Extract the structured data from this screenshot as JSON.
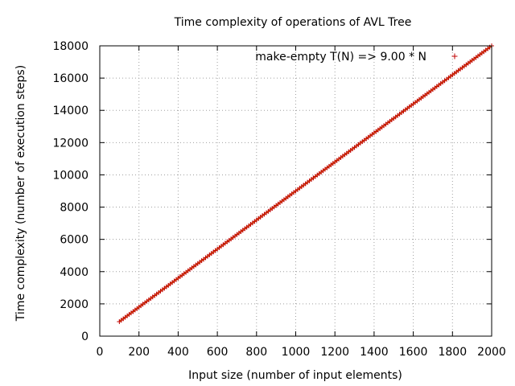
{
  "chart_data": {
    "type": "scatter",
    "title": "Time complexity of operations of AVL Tree",
    "xlabel": "Input size (number of input elements)",
    "ylabel": "Time complexity (number of execution steps)",
    "xlim": [
      0,
      2000
    ],
    "ylim": [
      0,
      18000
    ],
    "xticks": [
      0,
      200,
      400,
      600,
      800,
      1000,
      1200,
      1400,
      1600,
      1800,
      2000
    ],
    "yticks": [
      0,
      2000,
      4000,
      6000,
      8000,
      10000,
      12000,
      14000,
      16000,
      18000
    ],
    "xtick_labels": [
      "0",
      "200",
      "400",
      "600",
      "800",
      "1000",
      "1200",
      "1400",
      "1600",
      "1800",
      "2000"
    ],
    "ytick_labels": [
      "0",
      "2000",
      "4000",
      "6000",
      "8000",
      "10000",
      "12000",
      "14000",
      "16000",
      "18000"
    ],
    "grid": true,
    "legend_position": "top-right",
    "series": [
      {
        "name": "make-empty T(N) => 9.00 * N",
        "marker": "+",
        "color": "#c00000",
        "fit_color": "#e0a000",
        "x_start": 100,
        "x_end": 2000,
        "x_step": 10,
        "slope": 9.0
      }
    ]
  }
}
